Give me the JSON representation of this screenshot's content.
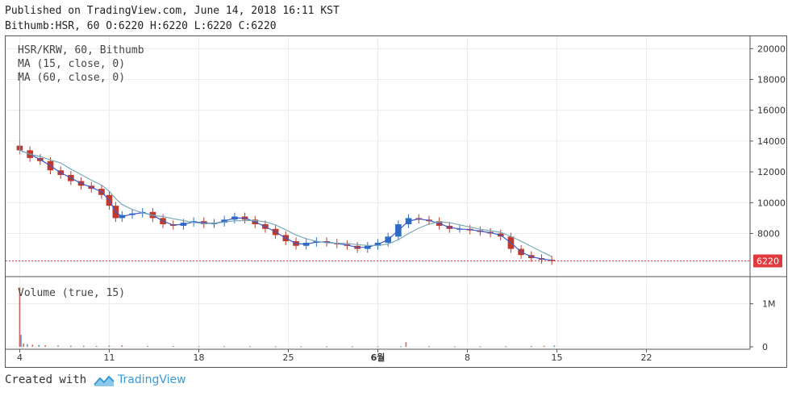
{
  "header": {
    "published": "Published on TradingView.com, June 14, 2018 16:11 KST",
    "ohlc": "Bithumb:HSR, 60 O:6220 H:6220 L:6220 C:6220"
  },
  "legend": {
    "symbol": "HSR/KRW, 60, Bithumb",
    "ma15": "MA (15, close, 0)",
    "ma60": "MA (60, close, 0)",
    "volume": "Volume (true, 15)"
  },
  "footer": {
    "created_with": "Created with",
    "brand": "TradingView"
  },
  "colors": {
    "up": "#2a6fc4",
    "down": "#c0392b",
    "ma15": "#3d5cc9",
    "ma60": "#7aaab8",
    "price_line": "#e0393e",
    "price_label_bg": "#e0393e",
    "grid": "#ececec",
    "brand": "#3a9bd6"
  },
  "chart_data": {
    "type": "line",
    "x_tick_labels": [
      "4",
      "11",
      "18",
      "25",
      "6월",
      "8",
      "15",
      "22"
    ],
    "x_tick_days": [
      4,
      11,
      18,
      25,
      32,
      39,
      46,
      53
    ],
    "y_ticks": [
      8000,
      10000,
      12000,
      14000,
      16000,
      18000,
      20000
    ],
    "y_tick_labels": [
      "8000",
      "10000",
      "12000",
      "14000",
      "16000",
      "18000",
      "20000"
    ],
    "ylim": [
      5200,
      20800
    ],
    "last_price": 6220,
    "last_price_label": "6220",
    "series": [
      {
        "type": "candles",
        "x_days": [
          4.0,
          4.8,
          5.6,
          6.4,
          7.2,
          8.0,
          8.8,
          9.6,
          10.4,
          11.0,
          11.5,
          12.0,
          12.8,
          13.6,
          14.4,
          15.2,
          16.0,
          16.8,
          17.6,
          18.4,
          19.2,
          20.0,
          20.8,
          21.6,
          22.4,
          23.2,
          24.0,
          24.8,
          25.6,
          26.4,
          27.2,
          28.0,
          28.8,
          29.6,
          30.4,
          31.2,
          32.0,
          32.8,
          33.6,
          34.4,
          35.2,
          36.0,
          36.8,
          37.6,
          38.4,
          39.2,
          40.0,
          40.8,
          41.6,
          42.4,
          43.2,
          44.0,
          44.8,
          45.6
        ],
        "close": [
          13400,
          12900,
          12700,
          12100,
          11800,
          11400,
          11100,
          10900,
          10500,
          9800,
          9000,
          9200,
          9300,
          9400,
          9000,
          8600,
          8500,
          8700,
          8800,
          8600,
          8700,
          8900,
          9100,
          8900,
          8600,
          8300,
          7900,
          7500,
          7200,
          7400,
          7500,
          7400,
          7300,
          7200,
          7000,
          7200,
          7400,
          7800,
          8600,
          9000,
          8900,
          8800,
          8500,
          8300,
          8300,
          8200,
          8100,
          8000,
          7800,
          7000,
          6600,
          6400,
          6300,
          6220
        ]
      },
      {
        "name": "MA (15, close, 0)",
        "type": "line"
      },
      {
        "name": "MA (60, close, 0)",
        "type": "line"
      }
    ],
    "volume": {
      "y_tick_labels": [
        "0",
        "1M"
      ],
      "y_ticks": [
        0,
        1000000
      ],
      "ylim": [
        0,
        1500000
      ],
      "x_days": [
        4.0,
        4.1,
        4.3,
        4.6,
        5.0,
        5.5,
        6.0,
        7.0,
        8.0,
        9.0,
        10.0,
        11.0,
        12.0,
        14.0,
        16.0,
        18.0,
        20.0,
        22.0,
        24.0,
        26.0,
        28.0,
        30.0,
        32.0,
        33.8,
        34.2,
        36.0,
        38.0,
        40.0,
        42.0,
        44.0,
        45.0,
        45.8
      ],
      "values": [
        1380000,
        280000,
        80000,
        60000,
        50000,
        40000,
        35000,
        30000,
        25000,
        25000,
        20000,
        30000,
        35000,
        20000,
        18000,
        15000,
        15000,
        15000,
        12000,
        12000,
        12000,
        12000,
        12000,
        14000,
        110000,
        15000,
        12000,
        12000,
        15000,
        20000,
        25000,
        30000
      ]
    }
  }
}
